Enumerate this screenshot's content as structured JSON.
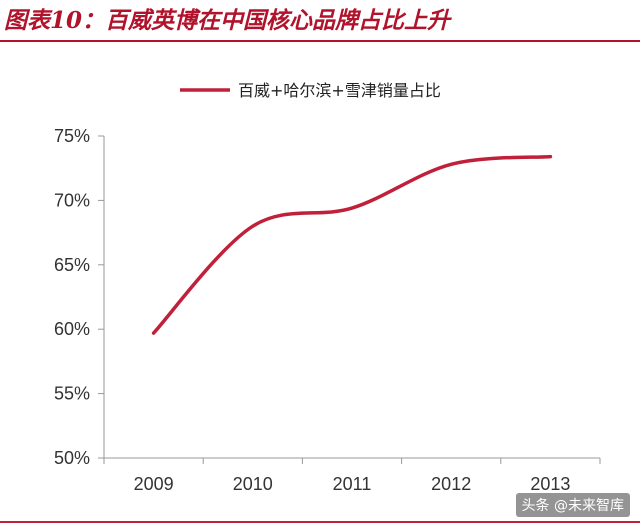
{
  "figure": {
    "title": "图表10：百威英博在中国核心品牌占比上升"
  },
  "watermark": "头条 @未来智库",
  "colors": {
    "accent": "#b0132b",
    "line": "#c0203a"
  },
  "chart_data": {
    "type": "line",
    "x": [
      "2009",
      "2010",
      "2011",
      "2012",
      "2013"
    ],
    "series": [
      {
        "name": "百威+哈尔滨+雪津销量占比",
        "values": [
          59.7,
          68.0,
          69.4,
          72.8,
          73.4
        ]
      }
    ],
    "yticks": [
      "50%",
      "55%",
      "60%",
      "65%",
      "70%",
      "75%"
    ],
    "ylim": [
      50,
      75
    ],
    "grid": false,
    "legend": "top-center",
    "xlabel": "",
    "ylabel": ""
  }
}
